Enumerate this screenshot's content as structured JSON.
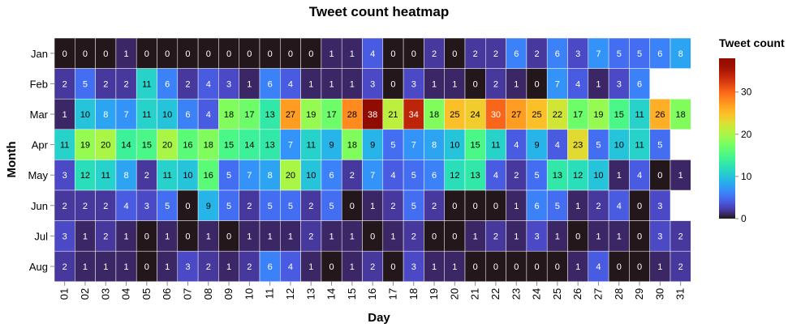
{
  "chart_data": {
    "type": "heatmap",
    "title": "Tweet count heatmap",
    "xlabel": "Day",
    "ylabel": "Month",
    "legend_title": "Tweet count",
    "legend_ticks": [
      0,
      10,
      20,
      30
    ],
    "legend_range": [
      0,
      38
    ],
    "legend_placement": "right",
    "colormap": "turbo",
    "x": [
      "01",
      "02",
      "03",
      "04",
      "05",
      "06",
      "07",
      "08",
      "09",
      "10",
      "11",
      "12",
      "13",
      "14",
      "15",
      "16",
      "17",
      "18",
      "19",
      "20",
      "21",
      "22",
      "23",
      "24",
      "25",
      "26",
      "27",
      "28",
      "29",
      "30",
      "31"
    ],
    "y": [
      "Jan",
      "Feb",
      "Mar",
      "Apr",
      "May",
      "Jun",
      "Jul",
      "Aug"
    ],
    "values": [
      [
        0,
        0,
        0,
        1,
        0,
        0,
        0,
        0,
        0,
        0,
        0,
        0,
        0,
        1,
        1,
        4,
        0,
        0,
        2,
        0,
        2,
        2,
        6,
        2,
        6,
        3,
        7,
        5,
        5,
        6,
        8
      ],
      [
        2,
        5,
        2,
        2,
        11,
        6,
        2,
        4,
        3,
        1,
        6,
        4,
        1,
        1,
        1,
        3,
        0,
        3,
        1,
        1,
        0,
        2,
        1,
        0,
        7,
        4,
        1,
        3,
        6,
        null,
        null
      ],
      [
        1,
        10,
        8,
        7,
        11,
        10,
        6,
        4,
        18,
        17,
        13,
        27,
        19,
        17,
        28,
        38,
        21,
        34,
        18,
        25,
        24,
        30,
        27,
        25,
        22,
        17,
        19,
        15,
        11,
        26,
        18
      ],
      [
        11,
        19,
        20,
        14,
        15,
        20,
        16,
        18,
        15,
        14,
        13,
        7,
        11,
        9,
        18,
        9,
        5,
        7,
        8,
        10,
        15,
        11,
        4,
        9,
        4,
        23,
        5,
        10,
        11,
        5,
        null
      ],
      [
        3,
        12,
        11,
        8,
        2,
        11,
        10,
        16,
        5,
        7,
        8,
        20,
        10,
        6,
        2,
        7,
        4,
        5,
        6,
        12,
        13,
        4,
        2,
        5,
        13,
        12,
        10,
        1,
        4,
        0,
        1
      ],
      [
        2,
        2,
        2,
        4,
        3,
        5,
        0,
        9,
        5,
        2,
        5,
        5,
        2,
        5,
        0,
        1,
        2,
        5,
        2,
        0,
        0,
        0,
        1,
        6,
        5,
        1,
        2,
        4,
        0,
        3,
        null
      ],
      [
        3,
        1,
        2,
        1,
        0,
        1,
        0,
        1,
        0,
        1,
        1,
        1,
        2,
        1,
        1,
        0,
        1,
        2,
        0,
        0,
        1,
        2,
        1,
        3,
        1,
        0,
        1,
        1,
        0,
        3,
        2
      ],
      [
        2,
        1,
        1,
        1,
        0,
        1,
        3,
        2,
        1,
        2,
        6,
        4,
        1,
        0,
        1,
        2,
        0,
        3,
        1,
        1,
        0,
        0,
        0,
        0,
        0,
        1,
        4,
        0,
        0,
        1,
        2
      ]
    ]
  }
}
